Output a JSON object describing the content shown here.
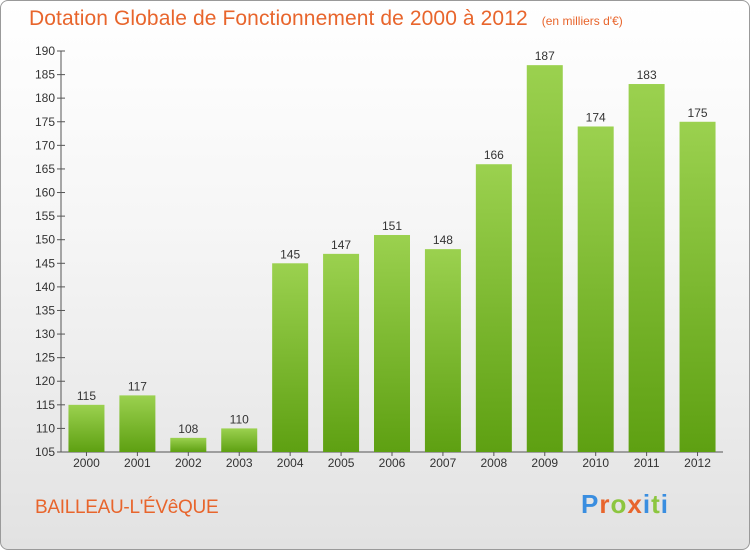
{
  "header": {
    "title": "Dotation Globale de Fonctionnement de 2000 à 2012",
    "subtitle": "(en milliers d'€)"
  },
  "commune": "BAILLEAU-L'ÉVêQUE",
  "logo": {
    "text": "Proxiti",
    "letter_colors": [
      "#3a8ee0",
      "#e8652c",
      "#8cc63f",
      "#e8652c",
      "#3a8ee0",
      "#8cc63f",
      "#3a8ee0"
    ]
  },
  "colors": {
    "title": "#e8652c",
    "bar_top": "#9bd14f",
    "bar_bottom": "#5ea012"
  },
  "chart_data": {
    "type": "bar",
    "categories": [
      "2000",
      "2001",
      "2002",
      "2003",
      "2004",
      "2005",
      "2006",
      "2007",
      "2008",
      "2009",
      "2010",
      "2011",
      "2012"
    ],
    "values": [
      115,
      117,
      108,
      110,
      145,
      147,
      151,
      148,
      166,
      187,
      174,
      183,
      175
    ],
    "ylim": [
      105,
      190
    ],
    "yticks": [
      105,
      110,
      115,
      120,
      125,
      130,
      135,
      140,
      145,
      150,
      155,
      160,
      165,
      170,
      175,
      180,
      185,
      190
    ],
    "grid": false,
    "data_labels": true
  }
}
